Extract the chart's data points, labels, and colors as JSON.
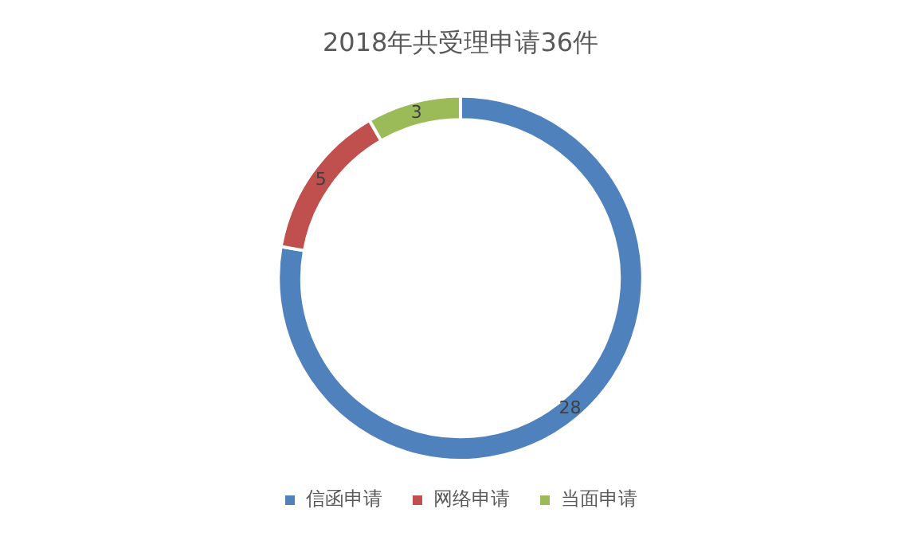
{
  "chart_data": {
    "type": "donut",
    "title": "2018年共受理申请36件",
    "categories": [
      "信函申请",
      "网络申请",
      "当面申请"
    ],
    "values": [
      28,
      5,
      3
    ],
    "colors": [
      "#4f81bd",
      "#c0504d",
      "#9bbb59"
    ],
    "data_labels": true,
    "legend": "bottom"
  }
}
